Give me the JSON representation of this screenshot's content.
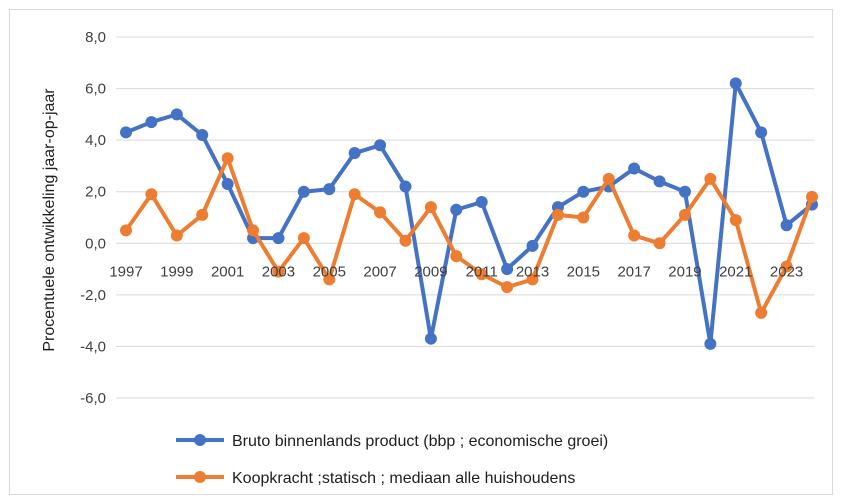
{
  "chart_data": {
    "type": "line",
    "title": "",
    "xlabel": "",
    "ylabel": "Procentuele ontwikkeling jaar-op-jaar",
    "ylim": [
      -6,
      8
    ],
    "yticks": [
      "8,0",
      "6,0",
      "4,0",
      "2,0",
      "0,0",
      "-2,0",
      "-4,0",
      "-6,0"
    ],
    "ytick_values": [
      8,
      6,
      4,
      2,
      0,
      -2,
      -4,
      -6
    ],
    "x": [
      1997,
      1998,
      1999,
      2000,
      2001,
      2002,
      2003,
      2004,
      2005,
      2006,
      2007,
      2008,
      2009,
      2010,
      2011,
      2012,
      2013,
      2014,
      2015,
      2016,
      2017,
      2018,
      2019,
      2020,
      2021,
      2022,
      2023,
      2024
    ],
    "xtick_labels": [
      "1997",
      "1999",
      "2001",
      "2003",
      "2005",
      "2007",
      "2009",
      "2011",
      "2013",
      "2015",
      "2017",
      "2019",
      "2021",
      "2023"
    ],
    "grid": "horizontal",
    "legend": "bottom",
    "series": [
      {
        "name": "Bruto binnenlands product (bbp ; economische groei)",
        "color": "#4472C4",
        "values": [
          4.3,
          4.7,
          5.0,
          4.2,
          2.3,
          0.2,
          0.2,
          2.0,
          2.1,
          3.5,
          3.8,
          2.2,
          -3.7,
          1.3,
          1.6,
          -1.0,
          -0.1,
          1.4,
          2.0,
          2.2,
          2.9,
          2.4,
          2.0,
          -3.9,
          6.2,
          4.3,
          0.7,
          1.5
        ]
      },
      {
        "name": "Koopkracht ;statisch ; mediaan alle huishoudens",
        "color": "#ED7D31",
        "values": [
          0.5,
          1.9,
          0.3,
          1.1,
          3.3,
          0.5,
          -1.1,
          0.2,
          -1.4,
          1.9,
          1.2,
          0.1,
          1.4,
          -0.5,
          -1.2,
          -1.7,
          -1.4,
          1.1,
          1.0,
          2.5,
          0.3,
          0.0,
          1.1,
          2.5,
          0.9,
          -2.7,
          -0.9,
          1.8
        ]
      }
    ]
  }
}
